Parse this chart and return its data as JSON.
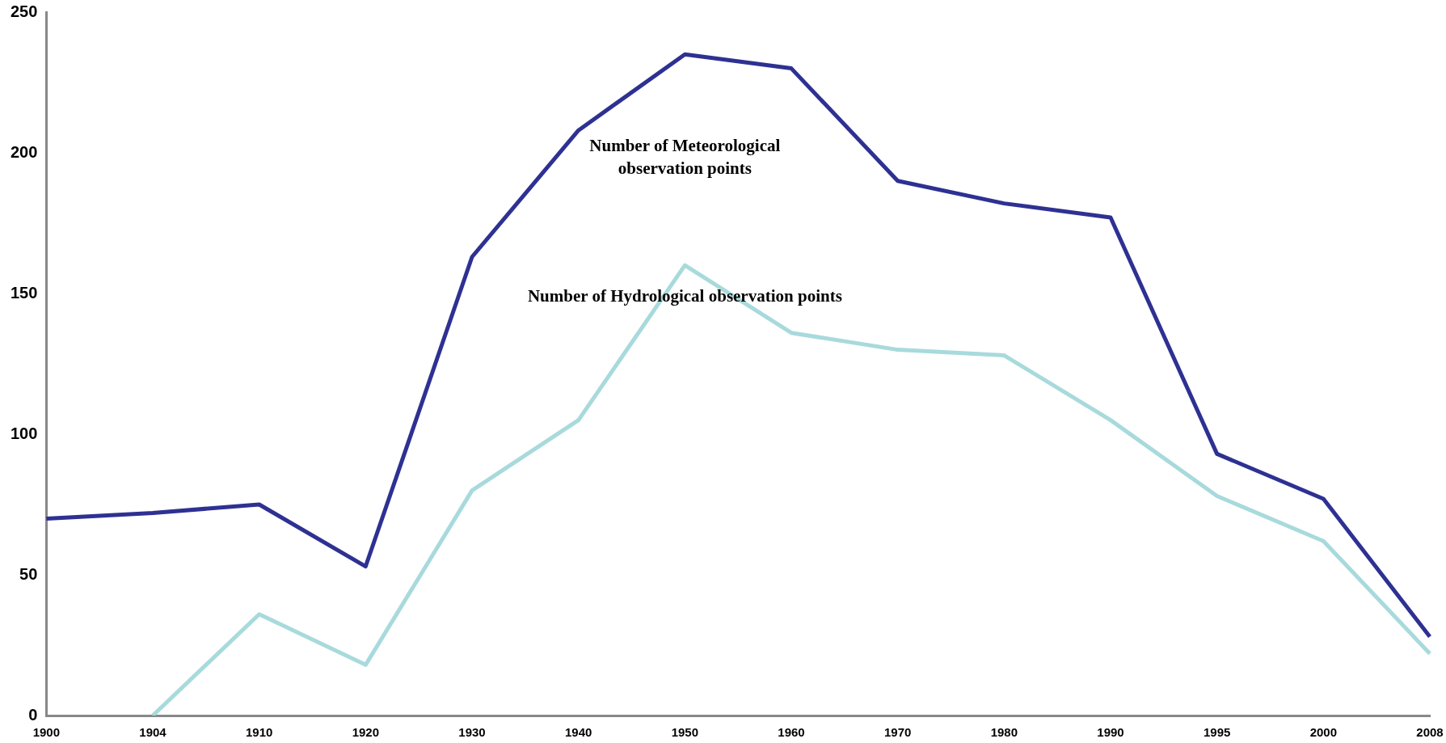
{
  "chart_data": {
    "type": "line",
    "categories": [
      "1900",
      "1904",
      "1910",
      "1920",
      "1930",
      "1940",
      "1950",
      "1960",
      "1970",
      "1980",
      "1990",
      "1995",
      "2000",
      "2008"
    ],
    "series": [
      {
        "name": "Number of Meteorological observation points",
        "color": "#2e3192",
        "values": [
          70,
          72,
          75,
          53,
          163,
          208,
          235,
          230,
          190,
          182,
          177,
          93,
          77,
          28
        ]
      },
      {
        "name": "Number of Hydrological observation points",
        "color": "#a8dadc",
        "values": [
          null,
          0,
          36,
          18,
          80,
          105,
          160,
          136,
          130,
          128,
          105,
          78,
          62,
          22
        ]
      }
    ],
    "ylim": [
      0,
      250
    ],
    "yticks": [
      0,
      50,
      100,
      150,
      200,
      250
    ],
    "grid": false,
    "legend": false,
    "marker": "none",
    "line_style": "solid"
  }
}
